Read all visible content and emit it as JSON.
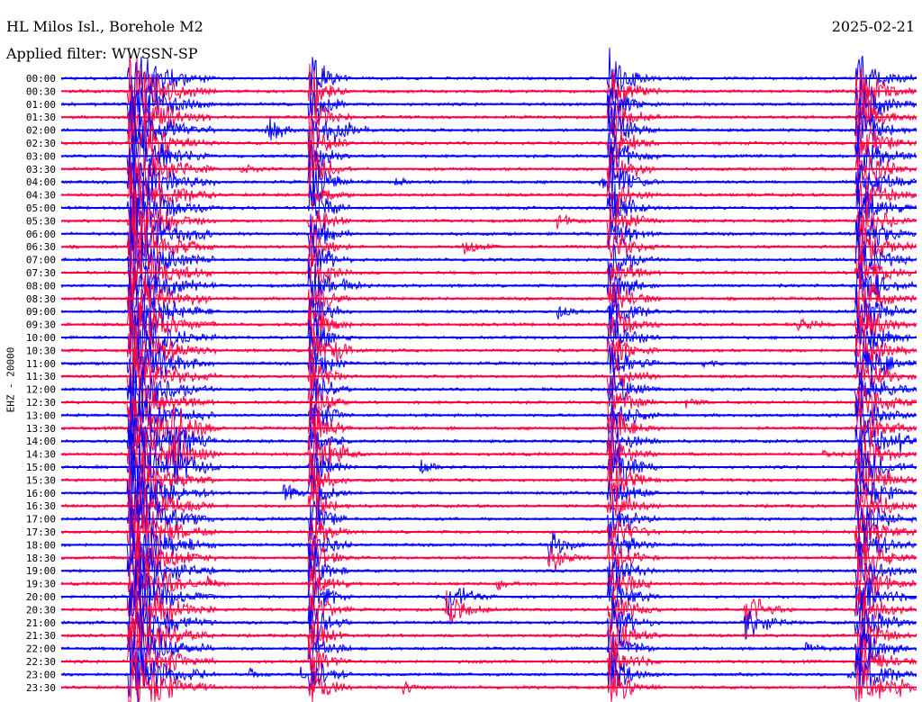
{
  "header": {
    "title": "HL Milos Isl., Borehole M2",
    "date": "2025-02-21",
    "filter": "Applied filter: WWSSN-SP"
  },
  "colors": {
    "blue": "#0000ff",
    "red": "#ff0040",
    "background": "#ffffff",
    "text": "#000000"
  },
  "chart_data": {
    "type": "line",
    "subtype": "helicorder",
    "ylabel": "EHZ - 20000",
    "time_labels": [
      "00:00",
      "00:30",
      "01:00",
      "01:30",
      "02:00",
      "02:30",
      "03:00",
      "03:30",
      "04:00",
      "04:30",
      "05:00",
      "05:30",
      "06:00",
      "06:30",
      "07:00",
      "07:30",
      "08:00",
      "08:30",
      "09:00",
      "09:30",
      "10:00",
      "10:30",
      "11:00",
      "11:30",
      "12:00",
      "12:30",
      "13:00",
      "13:30",
      "14:00",
      "14:30",
      "15:00",
      "15:30",
      "16:00",
      "16:30",
      "17:00",
      "17:30",
      "18:00",
      "18:30",
      "19:00",
      "19:30",
      "20:00",
      "20:30",
      "21:00",
      "21:30",
      "22:00",
      "22:30",
      "23:00",
      "23:30"
    ],
    "trace_colors": [
      "blue",
      "red"
    ],
    "events": [
      {
        "x": 0.08,
        "amp": 60,
        "len": 0.1,
        "rows": [
          0,
          1,
          2,
          3,
          4,
          5,
          6,
          7,
          8,
          9,
          10,
          11,
          12,
          13,
          14,
          15,
          16,
          17,
          18,
          19,
          20,
          21,
          22,
          23,
          24,
          25,
          26,
          27,
          28,
          29,
          30,
          31,
          32,
          33,
          34,
          35,
          36,
          37,
          38,
          39,
          40,
          41,
          42,
          43,
          44,
          45,
          46,
          47
        ]
      },
      {
        "x": 0.29,
        "amp": 45,
        "len": 0.05,
        "rows": [
          0,
          1,
          2,
          3,
          4,
          5,
          6,
          7,
          8,
          9,
          10,
          11,
          12,
          13,
          14,
          15,
          16,
          17,
          18,
          19,
          20,
          21,
          22,
          23,
          24,
          25,
          26,
          27,
          28,
          29,
          30,
          31,
          32,
          33,
          34,
          35,
          36,
          37,
          38,
          39,
          40,
          41,
          42,
          43,
          44,
          45,
          46,
          47
        ]
      },
      {
        "x": 0.64,
        "amp": 40,
        "len": 0.06,
        "rows": [
          0,
          1,
          2,
          3,
          4,
          5,
          6,
          7,
          8,
          9,
          10,
          11,
          12,
          13,
          14,
          15,
          16,
          17,
          18,
          19,
          20,
          21,
          22,
          23,
          24,
          25,
          26,
          27,
          28,
          29,
          30,
          31,
          32,
          33,
          34,
          35,
          36,
          37,
          38,
          39,
          40,
          41,
          42,
          43,
          44,
          45,
          46,
          47
        ]
      },
      {
        "x": 0.93,
        "amp": 45,
        "len": 0.07,
        "rows": [
          0,
          1,
          2,
          3,
          4,
          5,
          6,
          7,
          8,
          9,
          10,
          11,
          12,
          13,
          14,
          15,
          16,
          17,
          18,
          19,
          20,
          21,
          22,
          23,
          24,
          25,
          26,
          27,
          28,
          29,
          30,
          31,
          32,
          33,
          34,
          35,
          36,
          37,
          38,
          39,
          40,
          41,
          42,
          43,
          44,
          45,
          46,
          47
        ]
      },
      {
        "x": 0.24,
        "amp": 22,
        "len": 0.05,
        "rows": [
          4
        ]
      },
      {
        "x": 0.32,
        "amp": 22,
        "len": 0.05,
        "rows": [
          4
        ]
      },
      {
        "x": 0.21,
        "amp": 9,
        "len": 0.05,
        "rows": [
          7
        ]
      },
      {
        "x": 0.39,
        "amp": 9,
        "len": 0.03,
        "rows": [
          8
        ]
      },
      {
        "x": 0.63,
        "amp": 10,
        "len": 0.06,
        "rows": [
          8
        ]
      },
      {
        "x": 0.47,
        "amp": 14,
        "len": 0.05,
        "rows": [
          13
        ]
      },
      {
        "x": 0.58,
        "amp": 12,
        "len": 0.04,
        "rows": [
          11
        ]
      },
      {
        "x": 0.15,
        "amp": 8,
        "len": 0.04,
        "rows": [
          12
        ]
      },
      {
        "x": 0.33,
        "amp": 10,
        "len": 0.05,
        "rows": [
          16
        ]
      },
      {
        "x": 0.58,
        "amp": 12,
        "len": 0.04,
        "rows": [
          18
        ]
      },
      {
        "x": 0.86,
        "amp": 14,
        "len": 0.05,
        "rows": [
          19
        ]
      },
      {
        "x": 0.32,
        "amp": 12,
        "len": 0.05,
        "rows": [
          21
        ]
      },
      {
        "x": 0.13,
        "amp": 8,
        "len": 0.03,
        "rows": [
          22
        ]
      },
      {
        "x": 0.75,
        "amp": 8,
        "len": 0.03,
        "rows": [
          22
        ]
      },
      {
        "x": 0.96,
        "amp": 8,
        "len": 0.03,
        "rows": [
          22
        ]
      },
      {
        "x": 0.73,
        "amp": 7,
        "len": 0.04,
        "rows": [
          25
        ]
      },
      {
        "x": 0.13,
        "amp": 30,
        "len": 0.06,
        "rows": [
          27,
          28,
          29,
          30
        ]
      },
      {
        "x": 0.31,
        "amp": 25,
        "len": 0.05,
        "rows": [
          29
        ]
      },
      {
        "x": 0.42,
        "amp": 10,
        "len": 0.04,
        "rows": [
          30
        ]
      },
      {
        "x": 0.26,
        "amp": 14,
        "len": 0.05,
        "rows": [
          32
        ]
      },
      {
        "x": 0.66,
        "amp": 10,
        "len": 0.04,
        "rows": [
          30
        ]
      },
      {
        "x": 0.89,
        "amp": 10,
        "len": 0.04,
        "rows": [
          29
        ]
      },
      {
        "x": 0.98,
        "amp": 22,
        "len": 0.02,
        "rows": [
          28
        ]
      },
      {
        "x": 0.57,
        "amp": 26,
        "len": 0.05,
        "rows": [
          36,
          37
        ]
      },
      {
        "x": 0.45,
        "amp": 30,
        "len": 0.06,
        "rows": [
          40,
          41
        ]
      },
      {
        "x": 0.8,
        "amp": 30,
        "len": 0.06,
        "rows": [
          41,
          42
        ]
      },
      {
        "x": 0.51,
        "amp": 10,
        "len": 0.04,
        "rows": [
          39
        ]
      },
      {
        "x": 0.17,
        "amp": 8,
        "len": 0.03,
        "rows": [
          39
        ]
      },
      {
        "x": 0.29,
        "amp": 9,
        "len": 0.03,
        "rows": [
          40
        ]
      },
      {
        "x": 0.87,
        "amp": 9,
        "len": 0.04,
        "rows": [
          44
        ]
      },
      {
        "x": 0.22,
        "amp": 8,
        "len": 0.03,
        "rows": [
          46
        ]
      },
      {
        "x": 0.28,
        "amp": 8,
        "len": 0.03,
        "rows": [
          46
        ]
      },
      {
        "x": 0.92,
        "amp": 8,
        "len": 0.03,
        "rows": [
          46
        ]
      },
      {
        "x": 0.98,
        "amp": 14,
        "len": 0.02,
        "rows": [
          47
        ]
      },
      {
        "x": 0.4,
        "amp": 10,
        "len": 0.04,
        "rows": [
          47
        ]
      }
    ]
  }
}
